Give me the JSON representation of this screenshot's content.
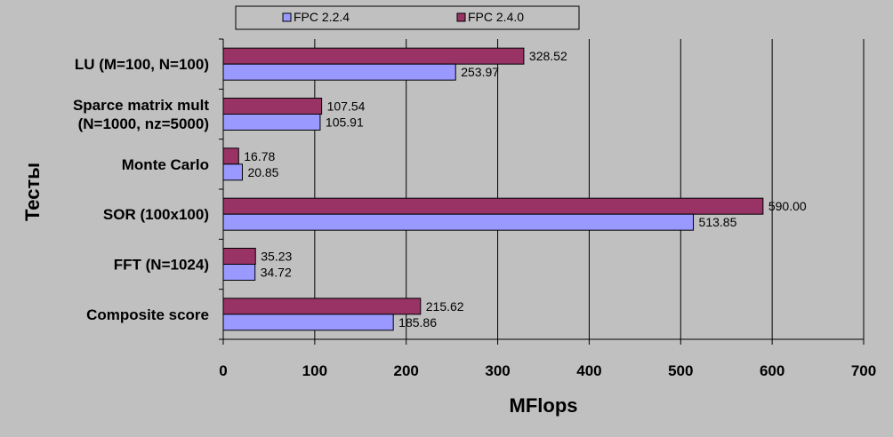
{
  "chart_data": {
    "type": "bar",
    "orientation": "horizontal",
    "categories": [
      "LU (M=100, N=100)",
      [
        "Sparce matrix mult",
        "(N=1000, nz=5000)"
      ],
      "Monte Carlo",
      "SOR (100x100)",
      "FFT (N=1024)",
      "Composite score"
    ],
    "series": [
      {
        "name": "FPC 2.2.4",
        "color": "#9999ff",
        "values": [
          253.97,
          105.91,
          20.85,
          513.85,
          34.72,
          185.86
        ],
        "labels": [
          "253.97",
          "105.91",
          "20.85",
          "513.85",
          "34.72",
          "185.86"
        ]
      },
      {
        "name": "FPC 2.4.0",
        "color": "#993366",
        "values": [
          328.52,
          107.54,
          16.78,
          590.0,
          35.23,
          215.62
        ],
        "labels": [
          "328.52",
          "107.54",
          "16.78",
          "590.00",
          "35.23",
          "215.62"
        ]
      }
    ],
    "xlabel": "MFlops",
    "ylabel": "Тесты",
    "xlim": [
      0,
      700
    ],
    "xticks": [
      0,
      100,
      200,
      300,
      400,
      500,
      600,
      700
    ],
    "grid": "vertical",
    "legend_position": "top"
  }
}
